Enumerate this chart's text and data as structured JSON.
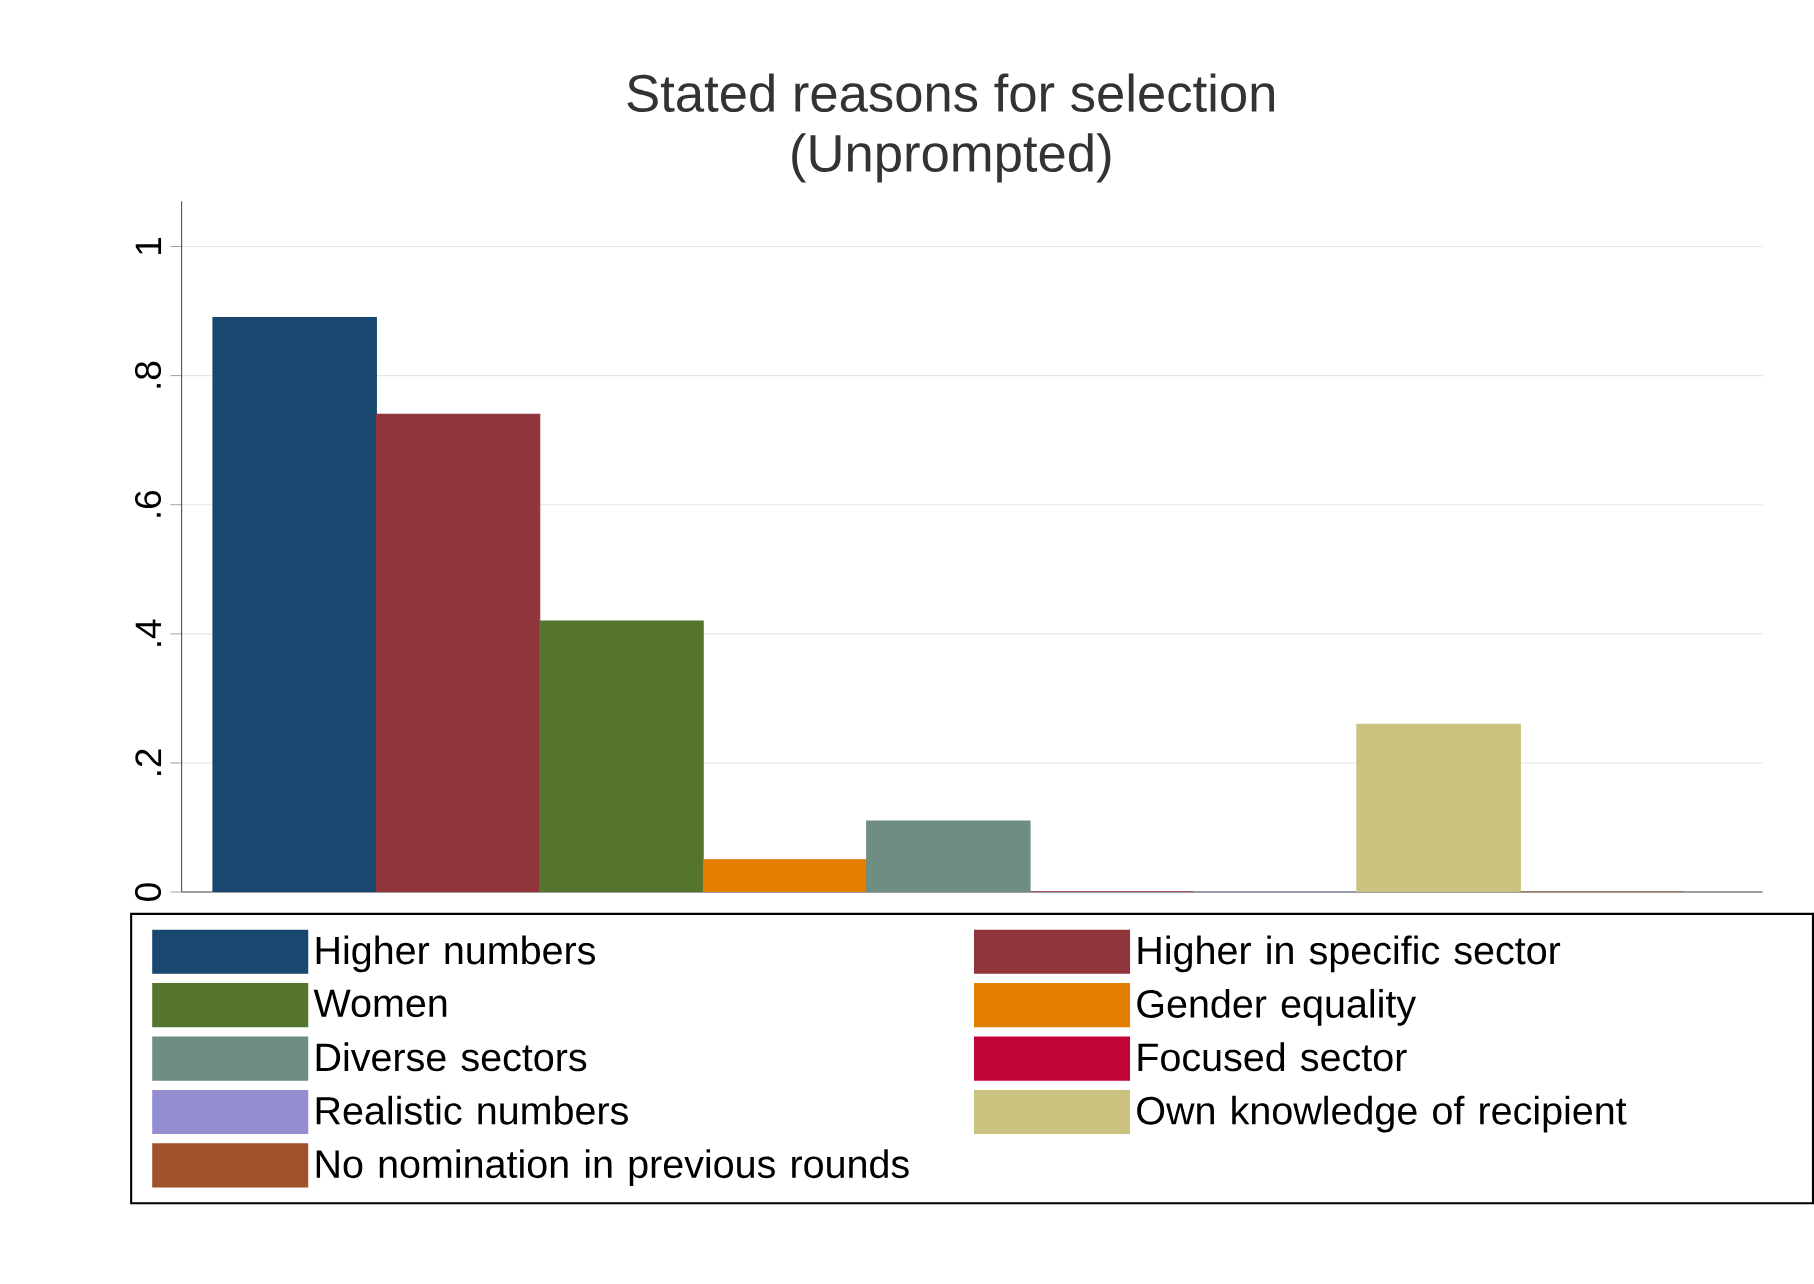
{
  "chart_data": {
    "type": "bar",
    "title": "Stated reasons for selection",
    "subtitle": "(Unprompted)",
    "categories": [
      null
    ],
    "series": [
      {
        "name": "Higher numbers",
        "color": "#1a476f",
        "values": [
          0.89
        ]
      },
      {
        "name": "Higher in specific sector",
        "color": "#90353b",
        "values": [
          0.74
        ]
      },
      {
        "name": "Women",
        "color": "#55752f",
        "values": [
          0.42
        ]
      },
      {
        "name": "Gender equality",
        "color": "#e37e00",
        "values": [
          0.05
        ]
      },
      {
        "name": "Diverse sectors",
        "color": "#6e8e84",
        "values": [
          0.11
        ]
      },
      {
        "name": "Focused sector",
        "color": "#c10534",
        "values": [
          0
        ]
      },
      {
        "name": "Realistic numbers",
        "color": "#938dd2",
        "values": [
          0
        ]
      },
      {
        "name": "Own knowledge of recipient",
        "color": "#cac27e",
        "values": [
          0.26
        ]
      },
      {
        "name": "No nomination in previous rounds",
        "color": "#a0522d",
        "values": [
          0
        ]
      }
    ],
    "ylim": [
      0,
      1.07
    ],
    "yticks": [
      0,
      {
        "value": 0.2,
        "label": ".2"
      },
      {
        "value": 0.4,
        "label": ".4"
      },
      {
        "value": 0.6,
        "label": ".6"
      },
      {
        "value": 0.8,
        "label": ".8"
      },
      1
    ],
    "grid": "y",
    "legend": "bottom"
  }
}
